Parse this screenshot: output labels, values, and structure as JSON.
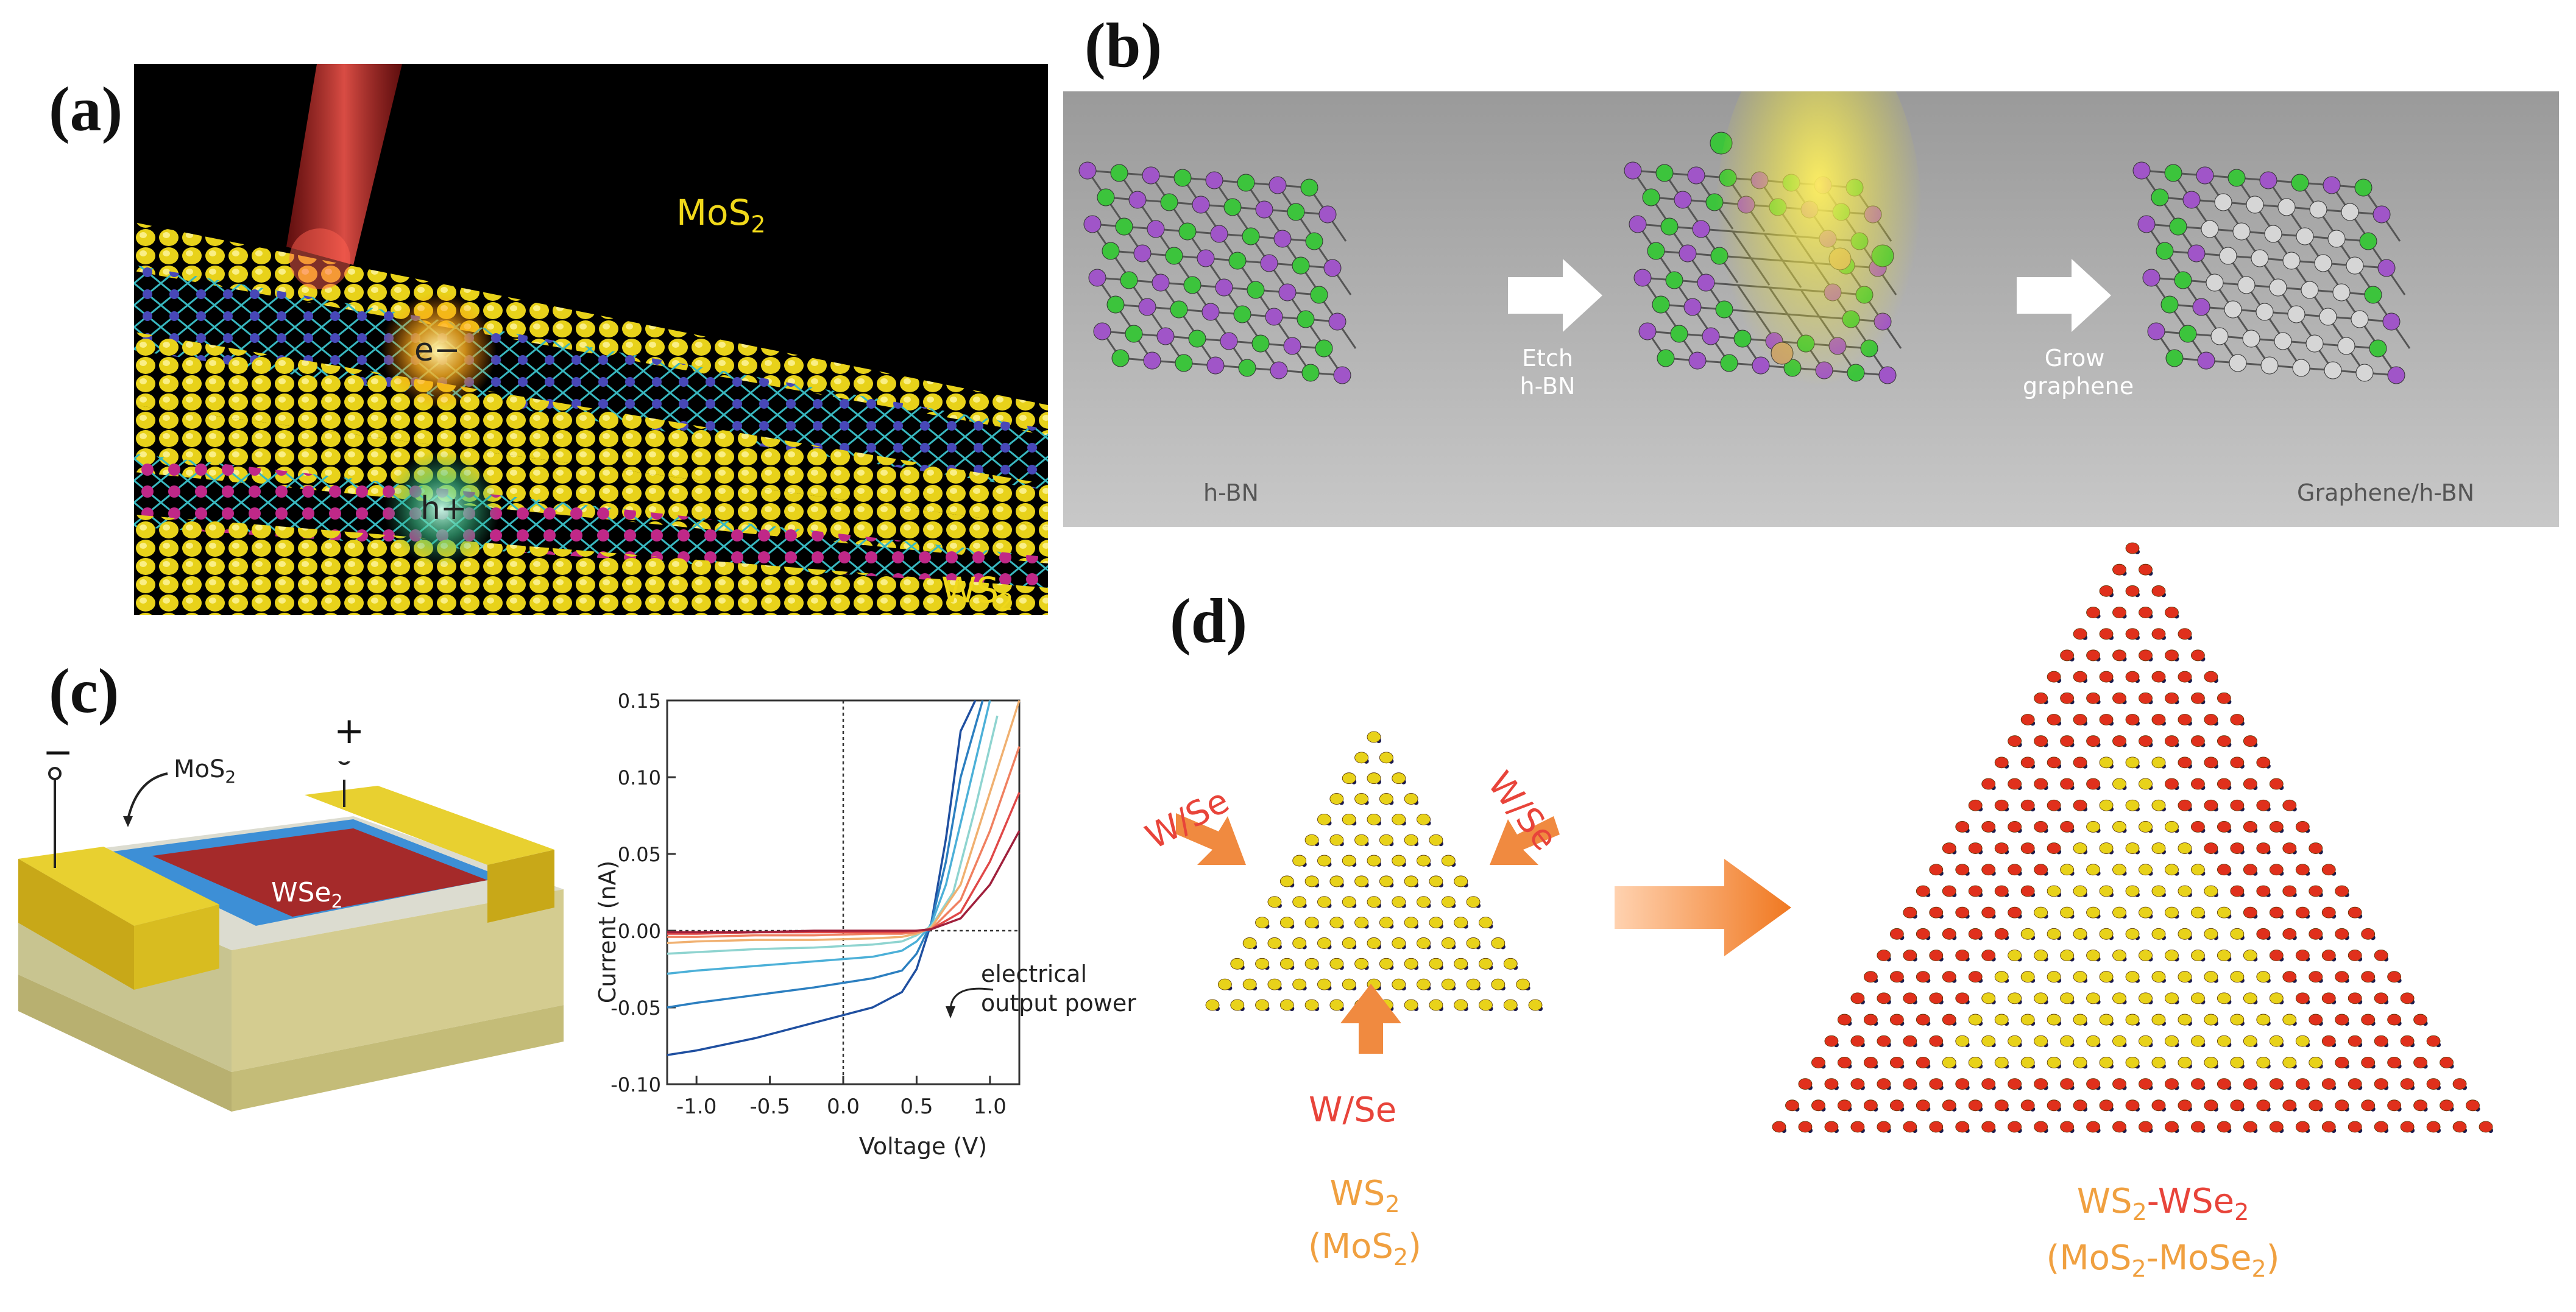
{
  "panels": {
    "a": {
      "letter": "(a)",
      "top_material": "MoS",
      "top_material_sub": "2",
      "bottom_material": "WS",
      "bottom_material_sub": "2",
      "electron": "e−",
      "hole": "h+"
    },
    "b": {
      "letter": "(b)",
      "stage1": "h-BN",
      "step1_line1": "Etch",
      "step1_line2": "h-BN",
      "step2_line1": "Grow",
      "step2_line2": "graphene",
      "stage3": "Graphene/h-BN"
    },
    "c": {
      "letter": "(c)",
      "minus": "−",
      "plus": "+",
      "top_material": "MoS",
      "top_material_sub": "2",
      "bottom_material": "WSe",
      "bottom_material_sub": "2",
      "annotation_line1": "electrical",
      "annotation_line2": "output power"
    },
    "d": {
      "letter": "(d)",
      "precursor_left": "W/Se",
      "precursor_right": "W/Se",
      "precursor_bottom": "W/Se",
      "core_line1": "WS",
      "core_line1_sub": "2",
      "core_line2": "(MoS",
      "core_line2_sub": "2",
      "core_line2_end": ")",
      "shell_line1_a": "WS",
      "shell_line1_a_sub": "2",
      "shell_line1_b": "-WSe",
      "shell_line1_b_sub": "2",
      "shell_line2_a": "(MoS",
      "shell_line2_a_sub": "2",
      "shell_line2_b": "-MoSe",
      "shell_line2_b_sub": "2",
      "shell_line2_end": ")"
    }
  },
  "colors": {
    "sulfur": "#e8d21a",
    "laser": "#e8443a",
    "hbn_boron": "#3cc43c",
    "hbn_nitrogen": "#a055c8",
    "graphene": "#d6d6d6",
    "wse2": "#a52a2a",
    "mos2": "#3d8fd6",
    "contact": "#d8c22a",
    "shell_atom": "#e0301c",
    "label_red": "#e8443a",
    "label_orange": "#f0a040"
  },
  "chart_data": {
    "type": "line",
    "xlabel": "Voltage (V)",
    "ylabel": "Current (nA)",
    "xlim": [
      -1.2,
      1.2
    ],
    "ylim": [
      -0.1,
      0.15
    ],
    "xticks": [
      -1.0,
      -0.5,
      0.0,
      0.5,
      1.0
    ],
    "yticks": [
      -0.1,
      -0.05,
      0.0,
      0.05,
      0.1,
      0.15
    ],
    "xtick_labels": [
      "-1.0",
      "-0.5",
      "0.0",
      "0.5",
      "1.0"
    ],
    "ytick_labels": [
      "-0.10",
      "-0.05",
      "0.00",
      "0.05",
      "0.10",
      "0.15"
    ],
    "grid": false,
    "annotation": "electrical output power",
    "series": [
      {
        "color": "#1f4fa0",
        "x": [
          -1.2,
          -1.0,
          -0.6,
          -0.2,
          0.2,
          0.4,
          0.5,
          0.6,
          0.7,
          0.8,
          0.9
        ],
        "y": [
          -0.081,
          -0.078,
          -0.07,
          -0.06,
          -0.05,
          -0.04,
          -0.025,
          0.005,
          0.06,
          0.13,
          0.15
        ]
      },
      {
        "color": "#2c7fc0",
        "x": [
          -1.2,
          -1.0,
          -0.6,
          -0.2,
          0.2,
          0.4,
          0.5,
          0.6,
          0.7,
          0.8,
          0.95
        ],
        "y": [
          -0.05,
          -0.047,
          -0.042,
          -0.037,
          -0.031,
          -0.026,
          -0.015,
          0.005,
          0.045,
          0.1,
          0.15
        ]
      },
      {
        "color": "#4cb0d8",
        "x": [
          -1.2,
          -1.0,
          -0.6,
          -0.2,
          0.2,
          0.4,
          0.5,
          0.6,
          0.7,
          0.85,
          1.0
        ],
        "y": [
          -0.028,
          -0.026,
          -0.023,
          -0.02,
          -0.017,
          -0.013,
          -0.007,
          0.004,
          0.03,
          0.09,
          0.15
        ]
      },
      {
        "color": "#8fd4d0",
        "x": [
          -1.2,
          -1.0,
          -0.6,
          -0.2,
          0.2,
          0.4,
          0.5,
          0.6,
          0.75,
          0.9,
          1.05
        ],
        "y": [
          -0.015,
          -0.014,
          -0.012,
          -0.011,
          -0.009,
          -0.007,
          -0.003,
          0.003,
          0.025,
          0.08,
          0.14
        ]
      },
      {
        "color": "#f0b070",
        "x": [
          -1.2,
          -1.0,
          -0.6,
          -0.2,
          0.2,
          0.4,
          0.5,
          0.6,
          0.8,
          1.0,
          1.2
        ],
        "y": [
          -0.008,
          -0.007,
          -0.006,
          -0.006,
          -0.005,
          -0.004,
          -0.002,
          0.002,
          0.03,
          0.09,
          0.15
        ]
      },
      {
        "color": "#f08060",
        "x": [
          -1.2,
          -1.0,
          -0.6,
          -0.2,
          0.2,
          0.4,
          0.5,
          0.6,
          0.8,
          1.0,
          1.2
        ],
        "y": [
          -0.004,
          -0.004,
          -0.003,
          -0.003,
          -0.002,
          -0.002,
          -0.001,
          0.001,
          0.02,
          0.065,
          0.12
        ]
      },
      {
        "color": "#e04848",
        "x": [
          -1.2,
          -1.0,
          -0.6,
          -0.2,
          0.2,
          0.4,
          0.5,
          0.6,
          0.8,
          1.0,
          1.2
        ],
        "y": [
          -0.002,
          -0.002,
          -0.001,
          -0.001,
          -0.001,
          -0.001,
          0.0,
          0.001,
          0.012,
          0.045,
          0.09
        ]
      },
      {
        "color": "#a0203c",
        "x": [
          -1.2,
          -1.0,
          -0.6,
          -0.2,
          0.2,
          0.4,
          0.5,
          0.6,
          0.8,
          1.0,
          1.2
        ],
        "y": [
          -0.001,
          -0.001,
          -0.001,
          0.0,
          0.0,
          0.0,
          0.0,
          0.001,
          0.008,
          0.03,
          0.065
        ]
      }
    ]
  }
}
